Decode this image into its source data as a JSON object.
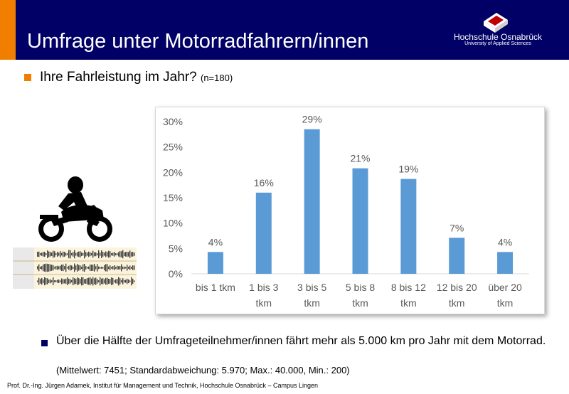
{
  "header": {
    "title": "Umfrage unter Motorradfahrern/innen",
    "logo_name": "Hochschule Osnabrück",
    "logo_subtitle": "University of Applied Sciences"
  },
  "question": {
    "text": "Ihre Fahrleistung im Jahr?",
    "sample": "(n=180)"
  },
  "chart_data": {
    "type": "bar",
    "categories": [
      [
        "bis 1 tkm"
      ],
      [
        "1 bis 3",
        "tkm"
      ],
      [
        "3 bis 5",
        "tkm"
      ],
      [
        "5 bis 8",
        "tkm"
      ],
      [
        "8 bis 12",
        "tkm"
      ],
      [
        "12 bis 20",
        "tkm"
      ],
      [
        "über 20",
        "tkm"
      ]
    ],
    "values": [
      4.3,
      16,
      28.5,
      20.8,
      18.7,
      7.1,
      4.3
    ],
    "data_labels": [
      "4%",
      "16%",
      "29%",
      "21%",
      "19%",
      "7%",
      "4%"
    ],
    "y_ticks": [
      0,
      5,
      10,
      15,
      20,
      25,
      30
    ],
    "y_tick_labels": [
      "0%",
      "5%",
      "10%",
      "15%",
      "20%",
      "25%",
      "30%"
    ],
    "ylim": [
      0,
      30
    ],
    "grid": false,
    "legend": "none",
    "bar_color": "#5b9bd5",
    "title": "",
    "xlabel": "",
    "ylabel": ""
  },
  "summary": {
    "text": "Über die Hälfte der Umfrageteilnehmer/innen fährt mehr als 5.000 km pro Jahr mit dem Motorrad.",
    "stats": "(Mittelwert: 7451; Standardabweichung:  5.970; Max.: 40.000, Min.: 200)"
  },
  "footer": {
    "text": "Prof. Dr.-Ing. Jürgen Adamek,  Institut für Management und Technik, Hochschule Osnabrück – Campus Lingen"
  },
  "colors": {
    "header_bg": "#000066",
    "accent": "#f07f00",
    "bar": "#5b9bd5"
  },
  "icons": {
    "motorcycle": "motorcycle-rider-icon",
    "waveform": "audio-waveform-image"
  }
}
